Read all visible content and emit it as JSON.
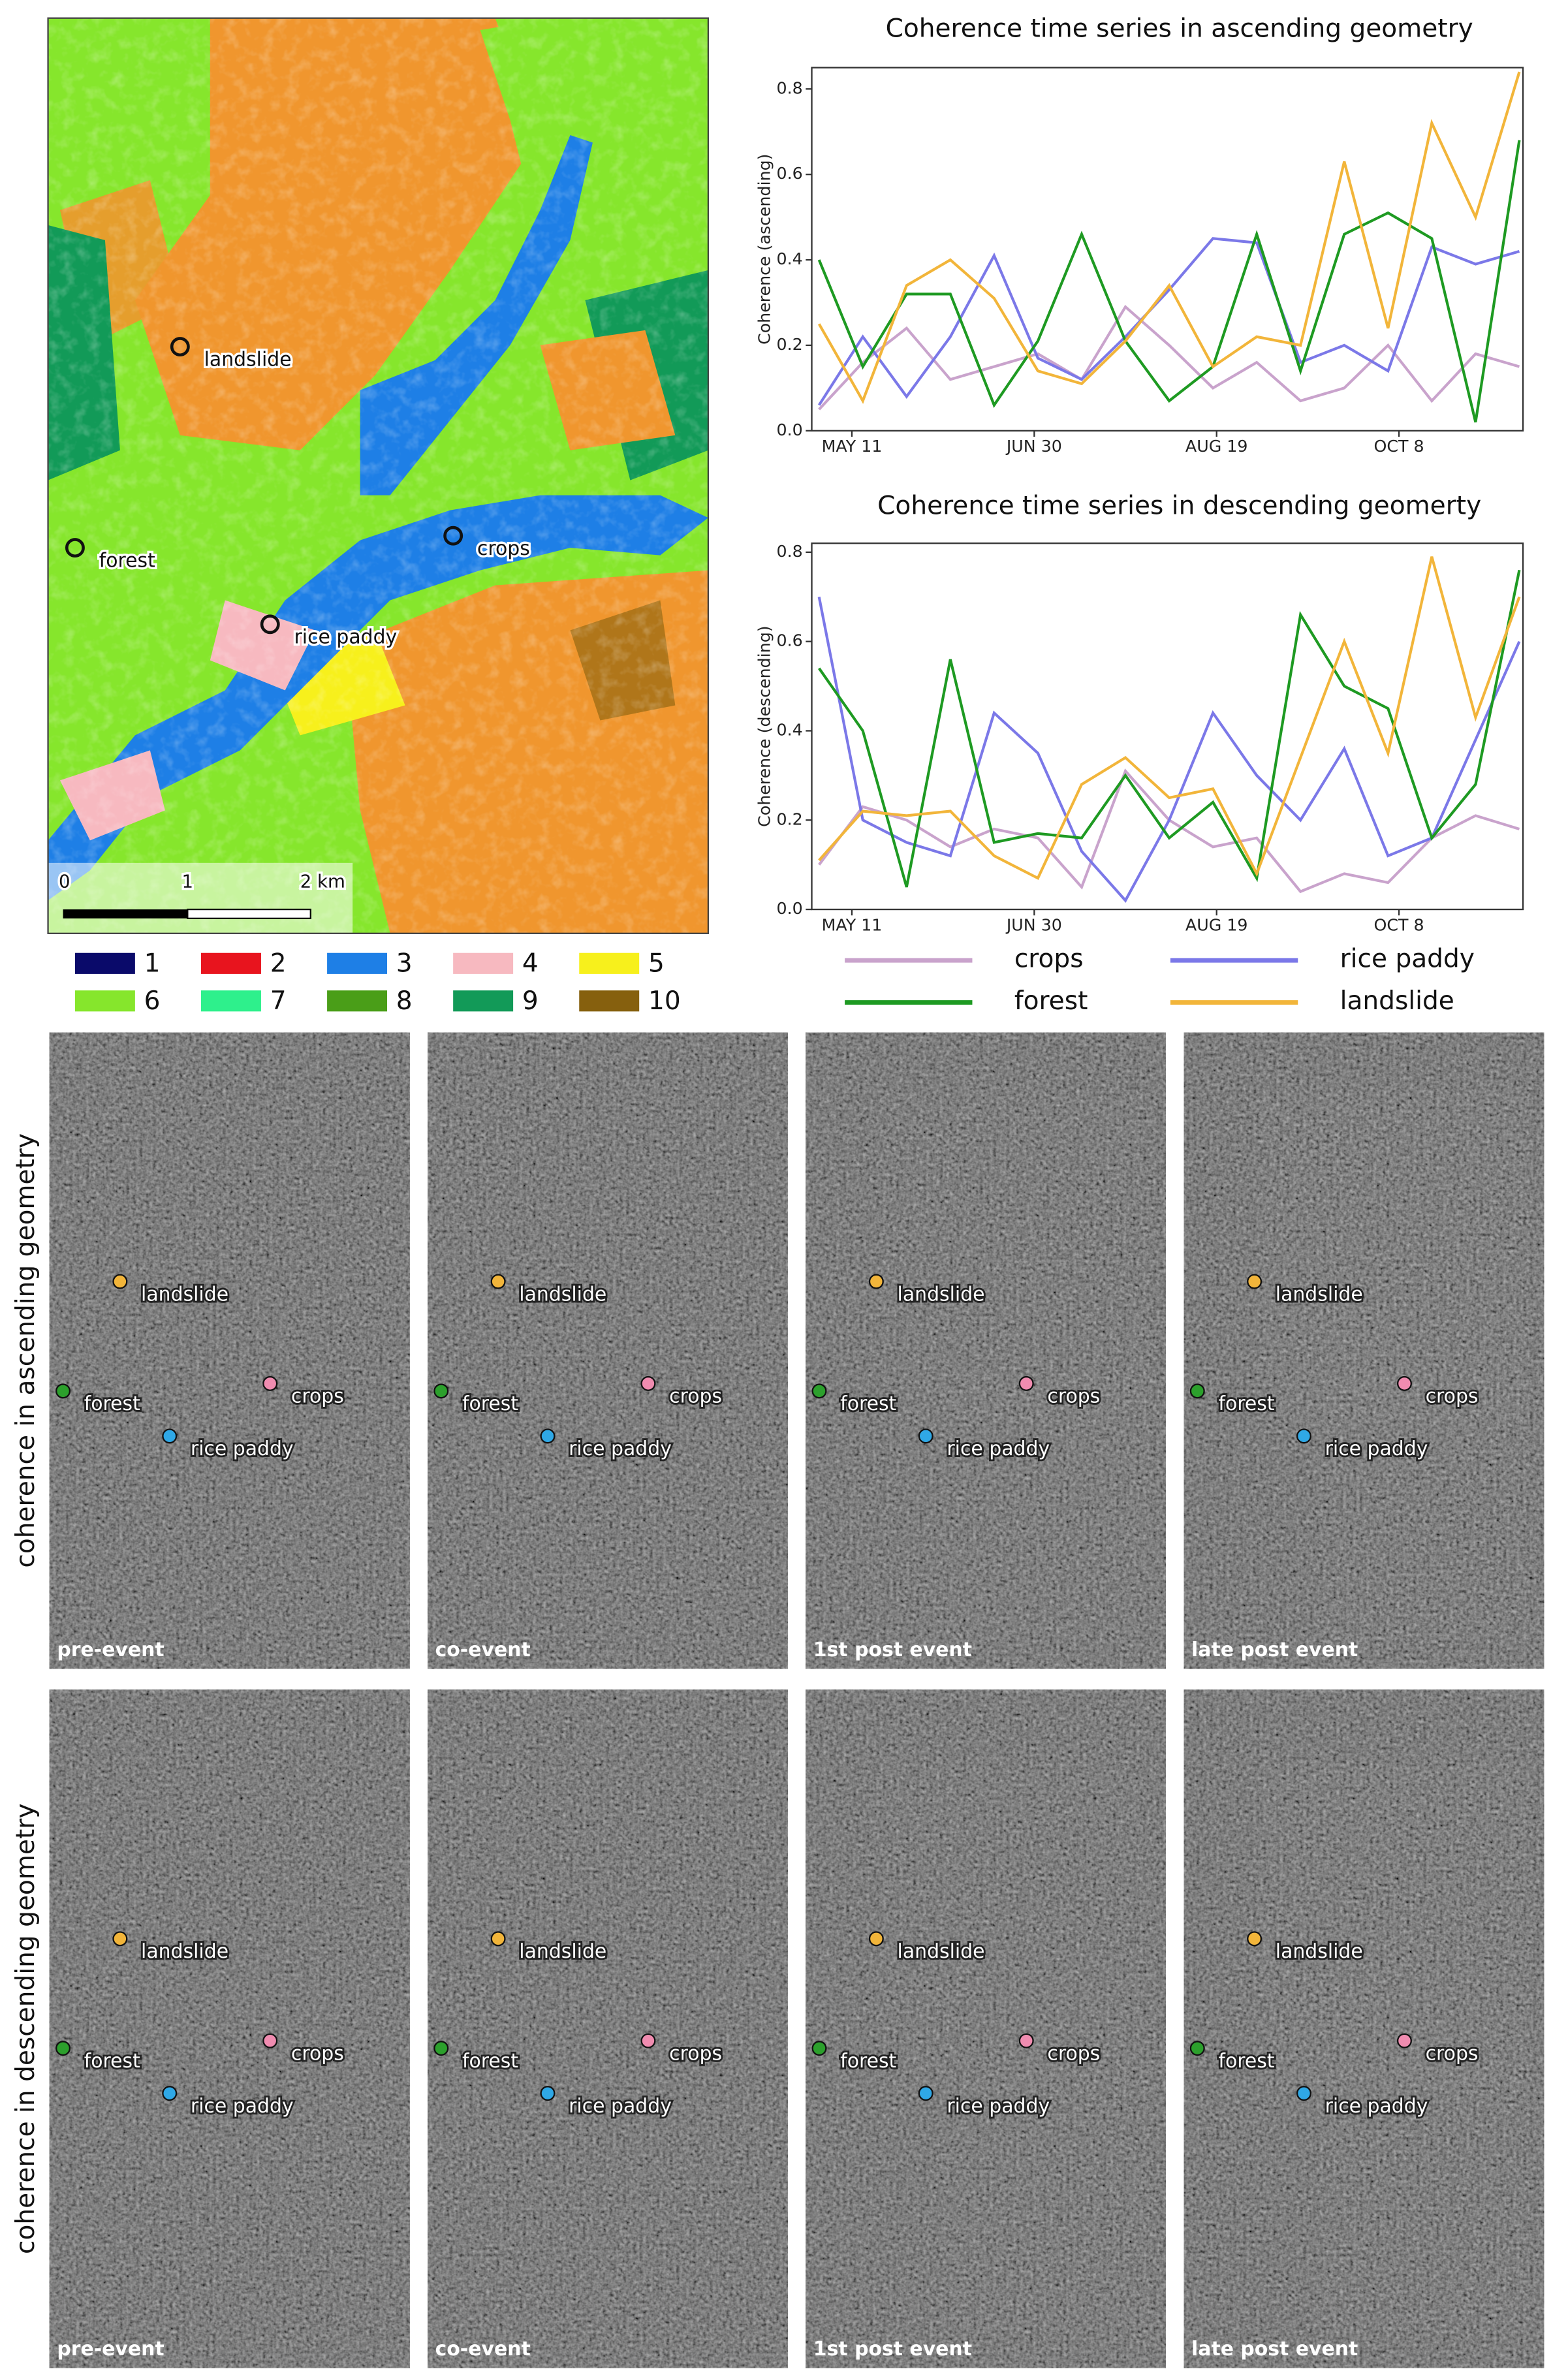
{
  "chart_data": [
    {
      "type": "line",
      "title": "Coherence time series in ascending geometry",
      "ylabel": "Coherence (ascending)",
      "x": [
        122,
        134,
        146,
        158,
        170,
        182,
        194,
        206,
        218,
        230,
        242,
        254,
        266,
        278,
        290,
        302,
        314
      ],
      "xlim": [
        120,
        315
      ],
      "xticks": [
        {
          "value": 131,
          "label": "MAY 11"
        },
        {
          "value": 181,
          "label": "JUN 30"
        },
        {
          "value": 231,
          "label": "AUG 19"
        },
        {
          "value": 281,
          "label": "OCT 8"
        }
      ],
      "ylim": [
        0,
        0.85
      ],
      "yticks": [
        {
          "value": 0,
          "label": "0.0"
        },
        0.2,
        0.4,
        0.6,
        0.8
      ],
      "series": [
        {
          "name": "crops",
          "color": "#c9a3cc",
          "values": [
            0.05,
            0.16,
            0.24,
            0.12,
            0.15,
            0.18,
            0.12,
            0.29,
            0.2,
            0.1,
            0.16,
            0.07,
            0.1,
            0.2,
            0.07,
            0.18,
            0.15
          ]
        },
        {
          "name": "rice paddy",
          "color": "#7b78e8",
          "values": [
            0.06,
            0.22,
            0.08,
            0.22,
            0.41,
            0.17,
            0.12,
            0.22,
            0.33,
            0.45,
            0.44,
            0.16,
            0.2,
            0.14,
            0.43,
            0.39,
            0.42
          ]
        },
        {
          "name": "forest",
          "color": "#1e9a22",
          "values": [
            0.4,
            0.15,
            0.32,
            0.32,
            0.06,
            0.21,
            0.46,
            0.21,
            0.07,
            0.15,
            0.46,
            0.14,
            0.46,
            0.51,
            0.45,
            0.02,
            0.68
          ]
        },
        {
          "name": "landslide",
          "color": "#f2b53a",
          "values": [
            0.25,
            0.07,
            0.34,
            0.4,
            0.31,
            0.14,
            0.11,
            0.21,
            0.34,
            0.15,
            0.22,
            0.2,
            0.63,
            0.24,
            0.72,
            0.5,
            0.84
          ]
        }
      ]
    },
    {
      "type": "line",
      "title": "Coherence time series in descending geomerty",
      "ylabel": "Coherence (descending)",
      "x": [
        122,
        134,
        146,
        158,
        170,
        182,
        194,
        206,
        218,
        230,
        242,
        254,
        266,
        278,
        290,
        302,
        314
      ],
      "xlim": [
        120,
        315
      ],
      "xticks": [
        {
          "value": 131,
          "label": "MAY 11"
        },
        {
          "value": 181,
          "label": "JUN 30"
        },
        {
          "value": 231,
          "label": "AUG 19"
        },
        {
          "value": 281,
          "label": "OCT 8"
        }
      ],
      "ylim": [
        0,
        0.82
      ],
      "yticks": [
        {
          "value": 0,
          "label": "0.0"
        },
        0.2,
        0.4,
        0.6,
        0.8
      ],
      "series": [
        {
          "name": "crops",
          "color": "#c9a3cc",
          "values": [
            0.1,
            0.23,
            0.2,
            0.14,
            0.18,
            0.16,
            0.05,
            0.31,
            0.2,
            0.14,
            0.16,
            0.04,
            0.08,
            0.06,
            0.16,
            0.21,
            0.18
          ]
        },
        {
          "name": "rice paddy",
          "color": "#7b78e8",
          "values": [
            0.7,
            0.2,
            0.15,
            0.12,
            0.44,
            0.35,
            0.13,
            0.02,
            0.2,
            0.44,
            0.3,
            0.2,
            0.36,
            0.12,
            0.16,
            0.38,
            0.6
          ]
        },
        {
          "name": "forest",
          "color": "#1e9a22",
          "values": [
            0.54,
            0.4,
            0.05,
            0.56,
            0.15,
            0.17,
            0.16,
            0.3,
            0.16,
            0.24,
            0.07,
            0.66,
            0.5,
            0.45,
            0.16,
            0.28,
            0.76
          ]
        },
        {
          "name": "landslide",
          "color": "#f2b53a",
          "values": [
            0.11,
            0.22,
            0.21,
            0.22,
            0.12,
            0.07,
            0.28,
            0.34,
            0.25,
            0.27,
            0.08,
            0.34,
            0.6,
            0.35,
            0.79,
            0.43,
            0.7
          ]
        }
      ]
    }
  ],
  "map": {
    "points": [
      {
        "label": "landslide"
      },
      {
        "label": "forest"
      },
      {
        "label": "crops"
      },
      {
        "label": "rice paddy"
      }
    ],
    "scale_labels": [
      "0",
      "1",
      "2 km"
    ],
    "class_legend": [
      {
        "label": "1",
        "color": "#0a0a6a"
      },
      {
        "label": "2",
        "color": "#e8141e"
      },
      {
        "label": "3",
        "color": "#1e7fe6"
      },
      {
        "label": "4",
        "color": "#f7b9c0"
      },
      {
        "label": "5",
        "color": "#f7f01c"
      },
      {
        "label": "6",
        "color": "#86e62c"
      },
      {
        "label": "7",
        "color": "#2ef08c"
      },
      {
        "label": "8",
        "color": "#4a9e18"
      },
      {
        "label": "9",
        "color": "#129a58"
      },
      {
        "label": "10",
        "color": "#86600e"
      }
    ]
  },
  "panels": {
    "row_labels": [
      "coherence in ascending geometry",
      "coherence in descending geometry"
    ],
    "column_labels": [
      "pre-event",
      "co-event",
      "1st post event",
      "late post event"
    ],
    "points": [
      {
        "label": "landslide",
        "color": "#f2b53a"
      },
      {
        "label": "forest",
        "color": "#2ca02c"
      },
      {
        "label": "crops",
        "color": "#f08cb0"
      },
      {
        "label": "rice paddy",
        "color": "#2fa8e6"
      }
    ]
  }
}
